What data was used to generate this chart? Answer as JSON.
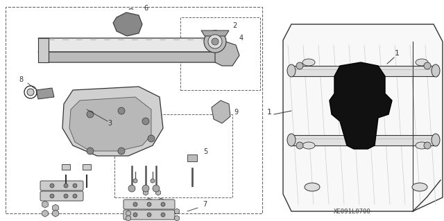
{
  "bg_color": "#ffffff",
  "fig_width": 6.4,
  "fig_height": 3.19,
  "dpi": 100,
  "code_label": "XE091L0700",
  "line_color": "#333333",
  "dash_color": "#666666",
  "fill_light": "#dddddd",
  "fill_mid": "#aaaaaa",
  "fill_dark": "#111111"
}
